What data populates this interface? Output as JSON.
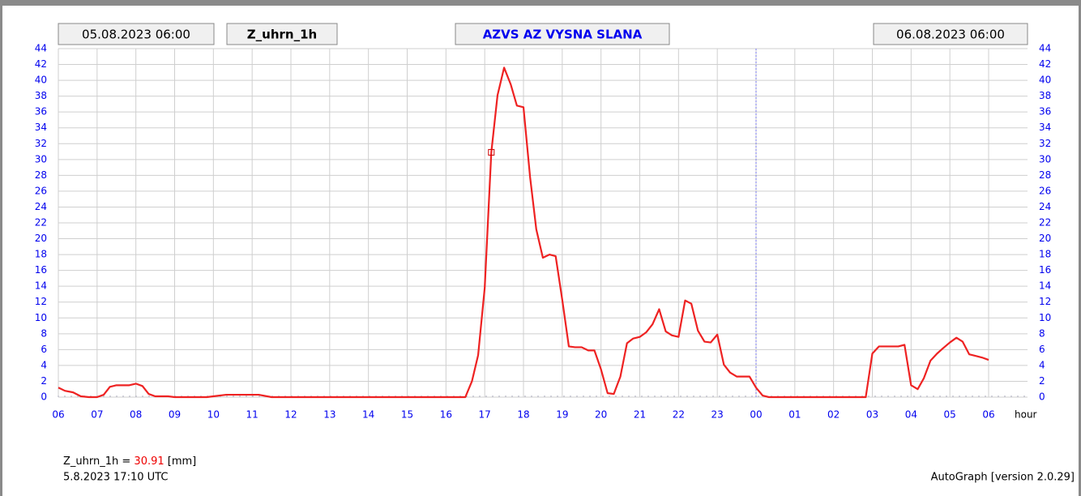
{
  "chart_data": {
    "type": "line",
    "header": {
      "start": "05.08.2023 06:00",
      "variable": "Z_uhrn_1h",
      "station": "AZVS AZ VYSNA SLANA",
      "end": "06.08.2023 06:00"
    },
    "x_label": "hour",
    "xlim": [
      0,
      24
    ],
    "xticks": [
      {
        "value": 0,
        "label": "06"
      },
      {
        "value": 1,
        "label": "07"
      },
      {
        "value": 2,
        "label": "08"
      },
      {
        "value": 3,
        "label": "09"
      },
      {
        "value": 4,
        "label": "10"
      },
      {
        "value": 5,
        "label": "11"
      },
      {
        "value": 6,
        "label": "12"
      },
      {
        "value": 7,
        "label": "13"
      },
      {
        "value": 8,
        "label": "14"
      },
      {
        "value": 9,
        "label": "15"
      },
      {
        "value": 10,
        "label": "16"
      },
      {
        "value": 11,
        "label": "17"
      },
      {
        "value": 12,
        "label": "18"
      },
      {
        "value": 13,
        "label": "19"
      },
      {
        "value": 14,
        "label": "20"
      },
      {
        "value": 15,
        "label": "21"
      },
      {
        "value": 16,
        "label": "22"
      },
      {
        "value": 17,
        "label": "23"
      },
      {
        "value": 18,
        "label": "00"
      },
      {
        "value": 19,
        "label": "01"
      },
      {
        "value": 20,
        "label": "02"
      },
      {
        "value": 21,
        "label": "03"
      },
      {
        "value": 22,
        "label": "04"
      },
      {
        "value": 23,
        "label": "05"
      },
      {
        "value": 24,
        "label": "06"
      }
    ],
    "ylim": [
      0,
      44
    ],
    "yticks": [
      0,
      2,
      4,
      6,
      8,
      10,
      12,
      14,
      16,
      18,
      20,
      22,
      24,
      26,
      28,
      30,
      32,
      34,
      36,
      38,
      40,
      42,
      44
    ],
    "grid": true,
    "day_boundary_x": 18,
    "series": [
      {
        "name": "Z_uhrn_1h",
        "color": "#ee2222",
        "x": [
          0,
          0.17,
          0.38,
          0.58,
          0.79,
          1.0,
          1.17,
          1.33,
          1.5,
          1.83,
          2.0,
          2.17,
          2.33,
          2.5,
          2.83,
          3.0,
          3.83,
          4.0,
          4.33,
          5.17,
          5.5,
          10.5,
          10.67,
          10.83,
          11.0,
          11.17,
          11.33,
          11.5,
          11.67,
          11.83,
          12.0,
          12.17,
          12.33,
          12.5,
          12.67,
          12.83,
          13.0,
          13.17,
          13.33,
          13.5,
          13.67,
          13.83,
          14.0,
          14.17,
          14.33,
          14.5,
          14.67,
          14.83,
          15.0,
          15.17,
          15.33,
          15.5,
          15.67,
          15.83,
          16.0,
          16.17,
          16.33,
          16.5,
          16.67,
          16.83,
          17.0,
          17.17,
          17.33,
          17.5,
          17.67,
          17.83,
          18.0,
          18.17,
          18.33,
          20.83,
          21.0,
          21.17,
          21.33,
          21.67,
          21.83,
          22.0,
          22.17,
          22.33,
          22.5,
          22.67,
          22.83,
          23.0,
          23.17,
          23.33,
          23.5,
          23.67,
          23.83,
          24.0
        ],
        "values": [
          1.2,
          0.8,
          0.6,
          0.1,
          0,
          0,
          0.3,
          1.3,
          1.5,
          1.5,
          1.7,
          1.4,
          0.4,
          0.1,
          0.1,
          0,
          0,
          0.1,
          0.3,
          0.3,
          0,
          0,
          2.0,
          5.3,
          13.8,
          30.91,
          38.1,
          41.6,
          39.5,
          36.8,
          36.6,
          27.8,
          21.2,
          17.6,
          18.0,
          17.8,
          12.3,
          6.4,
          6.3,
          6.3,
          5.9,
          5.9,
          3.5,
          0.5,
          0.4,
          2.6,
          6.8,
          7.4,
          7.6,
          8.2,
          9.2,
          11.1,
          8.3,
          7.8,
          7.6,
          12.2,
          11.8,
          8.4,
          7.0,
          6.9,
          7.9,
          4.1,
          3.1,
          2.6,
          2.6,
          2.6,
          1.2,
          0.2,
          0,
          0,
          5.5,
          6.4,
          6.4,
          6.4,
          6.6,
          1.5,
          1.0,
          2.4,
          4.6,
          5.5,
          6.2,
          6.9,
          7.5,
          7.0,
          5.4,
          5.2,
          5.0,
          4.7
        ]
      }
    ],
    "cursor": {
      "x": 11.17,
      "y": 30.91
    },
    "readout": {
      "label": "Z_uhrn_1h =",
      "value": 30.91,
      "unit": "[mm]",
      "time": "5.8.2023 17:10 UTC"
    },
    "version": "AutoGraph [version 2.0.29]"
  }
}
